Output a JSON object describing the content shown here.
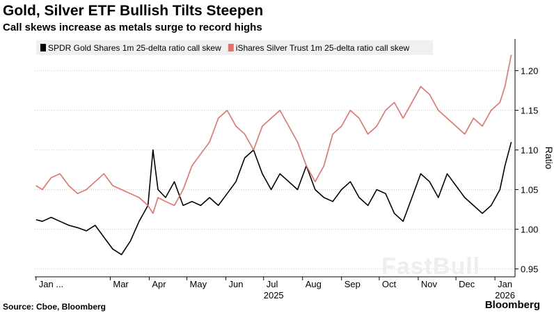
{
  "header": {
    "title": "Gold, Silver ETF Bullish Tilts Steepen",
    "subtitle": "Call skews increase as metals surge to record highs"
  },
  "footer": {
    "source": "Source: Cboe, Bloomberg",
    "brand": "Bloomberg",
    "watermark": "FastBull"
  },
  "chart_data": {
    "type": "line",
    "title": "Gold, Silver ETF Bullish Tilts Steepen",
    "subtitle": "Call skews increase as metals surge to record highs",
    "ylabel": "Ratio",
    "xlabel": "",
    "ylim": [
      0.94,
      1.24
    ],
    "yticks": [
      0.95,
      1.0,
      1.05,
      1.1,
      1.15,
      1.2
    ],
    "ytick_labels": [
      "0.95",
      "1.00",
      "1.05",
      "1.10",
      "1.15",
      "1.20"
    ],
    "xlim": [
      "2024-12-31",
      "2026-01-17"
    ],
    "xticks": [
      "2025-01",
      "2025-03",
      "2025-04",
      "2025-05",
      "2025-06",
      "2025-07",
      "2025-08",
      "2025-09",
      "2025-10",
      "2025-11",
      "2025-12",
      "2026-01"
    ],
    "xtick_labels": [
      "Jan ...",
      "Mar",
      "Apr",
      "May",
      "Jun",
      "Jul",
      "Aug",
      "Sep",
      "Oct",
      "Nov",
      "Dec",
      "Jan"
    ],
    "year_labels": [
      {
        "x": "2025-07",
        "label": "2025"
      },
      {
        "x": "2026-01",
        "label": "2026"
      }
    ],
    "legend": "top-left",
    "grid": "horizontal dotted",
    "y_axis_side": "right",
    "x": [
      "2025-01-01",
      "2025-01-06",
      "2025-01-13",
      "2025-01-20",
      "2025-01-27",
      "2025-02-03",
      "2025-02-10",
      "2025-02-17",
      "2025-02-24",
      "2025-03-03",
      "2025-03-10",
      "2025-03-17",
      "2025-03-24",
      "2025-03-31",
      "2025-04-04",
      "2025-04-08",
      "2025-04-14",
      "2025-04-21",
      "2025-04-28",
      "2025-05-05",
      "2025-05-12",
      "2025-05-19",
      "2025-05-26",
      "2025-06-02",
      "2025-06-09",
      "2025-06-16",
      "2025-06-23",
      "2025-06-30",
      "2025-07-07",
      "2025-07-14",
      "2025-07-21",
      "2025-07-28",
      "2025-08-04",
      "2025-08-11",
      "2025-08-18",
      "2025-08-25",
      "2025-09-01",
      "2025-09-08",
      "2025-09-15",
      "2025-09-22",
      "2025-09-29",
      "2025-10-06",
      "2025-10-13",
      "2025-10-20",
      "2025-10-27",
      "2025-11-03",
      "2025-11-10",
      "2025-11-17",
      "2025-11-24",
      "2025-12-01",
      "2025-12-08",
      "2025-12-15",
      "2025-12-22",
      "2025-12-29",
      "2026-01-05",
      "2026-01-09",
      "2026-01-14"
    ],
    "series": [
      {
        "name": "SPDR Gold Shares 1m 25-delta ratio call skew",
        "color": "#000000",
        "values": [
          1.012,
          1.01,
          1.015,
          1.01,
          1.005,
          1.002,
          0.998,
          1.005,
          0.99,
          0.975,
          0.968,
          0.985,
          1.01,
          1.03,
          1.1,
          1.05,
          1.04,
          1.06,
          1.03,
          1.035,
          1.03,
          1.04,
          1.03,
          1.045,
          1.06,
          1.09,
          1.1,
          1.07,
          1.05,
          1.07,
          1.06,
          1.05,
          1.08,
          1.05,
          1.04,
          1.035,
          1.05,
          1.06,
          1.04,
          1.03,
          1.05,
          1.045,
          1.02,
          1.01,
          1.04,
          1.07,
          1.06,
          1.04,
          1.07,
          1.055,
          1.04,
          1.03,
          1.02,
          1.03,
          1.05,
          1.08,
          1.11
        ]
      },
      {
        "name": "iShares Silver Trust 1m 25-delta ratio call skew",
        "color": "#e8706b",
        "values": [
          1.055,
          1.05,
          1.065,
          1.07,
          1.055,
          1.045,
          1.05,
          1.06,
          1.07,
          1.055,
          1.05,
          1.045,
          1.04,
          1.03,
          1.02,
          1.04,
          1.035,
          1.03,
          1.05,
          1.08,
          1.095,
          1.11,
          1.14,
          1.15,
          1.13,
          1.12,
          1.1,
          1.13,
          1.14,
          1.15,
          1.13,
          1.11,
          1.08,
          1.06,
          1.08,
          1.12,
          1.13,
          1.15,
          1.14,
          1.12,
          1.13,
          1.15,
          1.16,
          1.14,
          1.16,
          1.18,
          1.17,
          1.15,
          1.14,
          1.13,
          1.12,
          1.14,
          1.13,
          1.15,
          1.16,
          1.18,
          1.22
        ]
      }
    ]
  }
}
